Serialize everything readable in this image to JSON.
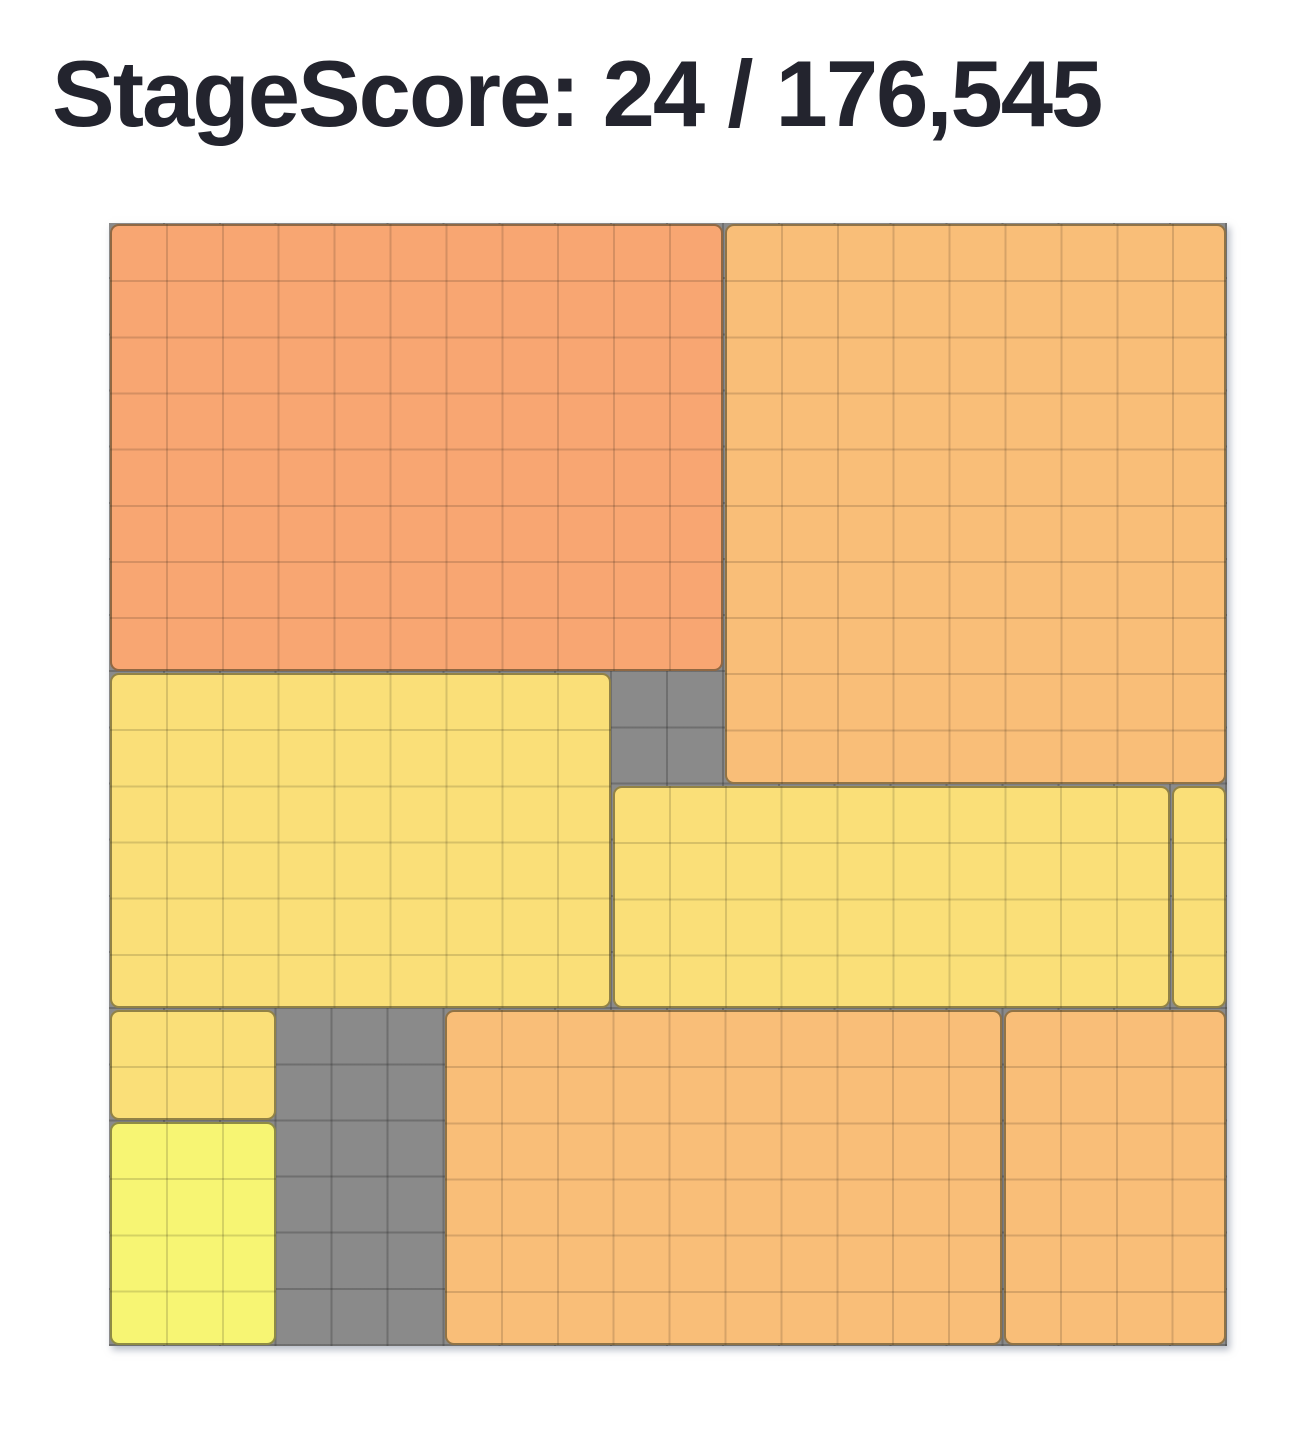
{
  "header": {
    "title_text": "StageScore: 24 / 176,545",
    "label": "StageScore",
    "score": 24,
    "total": "176,545",
    "text_color": "#23242e"
  },
  "game_data": {
    "type": "block-puzzle-board",
    "grid": {
      "cols": 20,
      "rows": 20
    },
    "board_background_color": "#8a8a8a",
    "board_grid_line_color": "#717171",
    "piece_colors": {
      "salmon": "#F8A672",
      "orange": "#F9BE78",
      "yellow": "#FADF78",
      "bright_yellow": "#F7F573"
    },
    "blocks": [
      {
        "name": "salmon-block-top-left",
        "col": 0,
        "row": 0,
        "w": 11,
        "h": 8,
        "color": "salmon"
      },
      {
        "name": "orange-block-top-right",
        "col": 11,
        "row": 0,
        "w": 9,
        "h": 10,
        "color": "orange"
      },
      {
        "name": "yellow-block-left",
        "col": 0,
        "row": 8,
        "w": 9,
        "h": 6,
        "color": "yellow"
      },
      {
        "name": "yellow-block-middle",
        "col": 9,
        "row": 10,
        "w": 10,
        "h": 4,
        "color": "yellow"
      },
      {
        "name": "yellow-strip-right-edge",
        "col": 19,
        "row": 10,
        "w": 1,
        "h": 4,
        "color": "yellow"
      },
      {
        "name": "yellow-block-small-left",
        "col": 0,
        "row": 14,
        "w": 3,
        "h": 2,
        "color": "yellow"
      },
      {
        "name": "bright-yellow-block-bottom-left",
        "col": 0,
        "row": 16,
        "w": 3,
        "h": 4,
        "color": "bright_yellow"
      },
      {
        "name": "orange-block-bottom-left",
        "col": 6,
        "row": 14,
        "w": 10,
        "h": 6,
        "color": "orange"
      },
      {
        "name": "orange-block-bottom-right",
        "col": 16,
        "row": 14,
        "w": 4,
        "h": 6,
        "color": "orange"
      }
    ],
    "empty_regions": [
      {
        "name": "empty-gap-middle",
        "col": 9,
        "row": 8,
        "w": 2,
        "h": 2
      },
      {
        "name": "empty-gap-bottom",
        "col": 3,
        "row": 14,
        "w": 3,
        "h": 6
      }
    ]
  }
}
